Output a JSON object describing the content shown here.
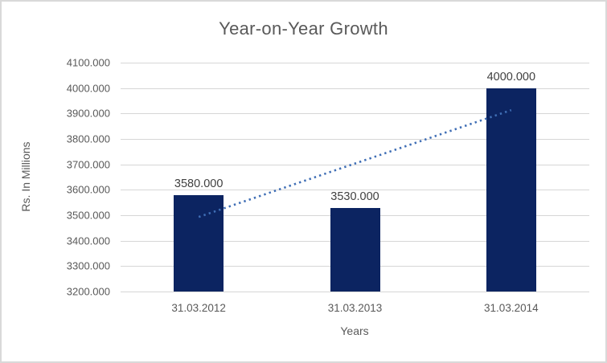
{
  "chart_data": {
    "type": "bar",
    "title": "Year-on-Year Growth",
    "xlabel": "Years",
    "ylabel": "Rs. In Millions",
    "categories": [
      "31.03.2012",
      "31.03.2013",
      "31.03.2014"
    ],
    "values": [
      3580,
      3530,
      4000
    ],
    "data_labels": [
      "3580.000",
      "3530.000",
      "4000.000"
    ],
    "ylim": [
      3200,
      4100
    ],
    "ytick_step": 100,
    "ytick_labels": [
      "3200.000",
      "3300.000",
      "3400.000",
      "3500.000",
      "3600.000",
      "3700.000",
      "3800.000",
      "3900.000",
      "4000.000",
      "4100.000"
    ],
    "grid": true,
    "legend": "none",
    "trendline": {
      "type": "linear",
      "style": "dotted",
      "start_value": 3493.3,
      "end_value": 3913.3
    },
    "colors": {
      "bar": "#0C2461",
      "trendline": "#3F6EB5",
      "gridline": "#D6D6D6",
      "title_text": "#595959",
      "axis_text": "#595959",
      "data_label_text": "#404040",
      "frame_border": "#D9D9D9",
      "background": "#FFFFFF"
    }
  }
}
